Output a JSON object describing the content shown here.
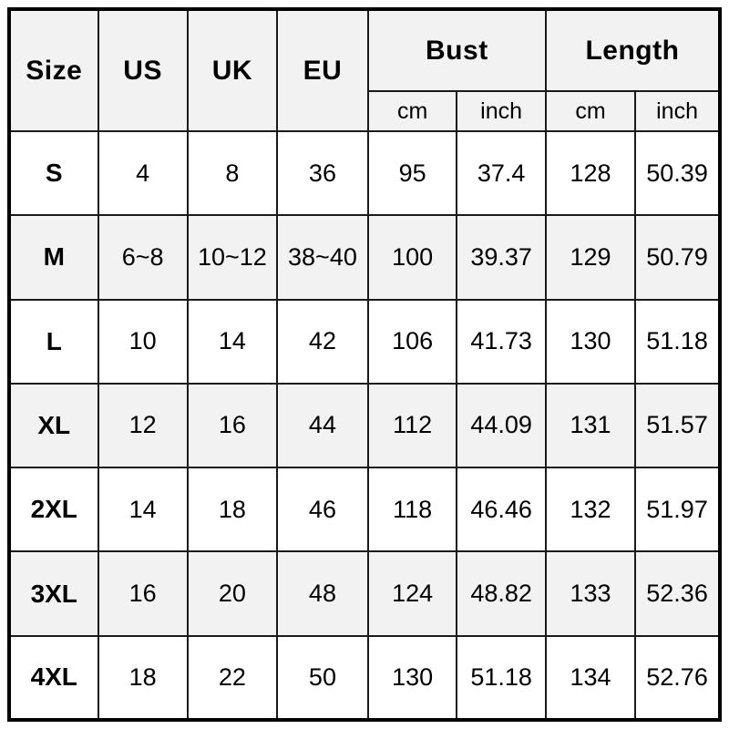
{
  "chart_data": {
    "type": "table",
    "column_groups": [
      {
        "label": "Size",
        "colspan": 1,
        "rowspan": 2
      },
      {
        "label": "US",
        "colspan": 1,
        "rowspan": 2
      },
      {
        "label": "UK",
        "colspan": 1,
        "rowspan": 2
      },
      {
        "label": "EU",
        "colspan": 1,
        "rowspan": 2
      },
      {
        "label": "Bust",
        "colspan": 2,
        "rowspan": 1
      },
      {
        "label": "Length",
        "colspan": 2,
        "rowspan": 1
      }
    ],
    "sub_headers": [
      "cm",
      "inch",
      "cm",
      "inch"
    ],
    "columns": [
      "Size",
      "US",
      "UK",
      "EU",
      "Bust cm",
      "Bust inch",
      "Length cm",
      "Length inch"
    ],
    "rows": [
      [
        "S",
        "4",
        "8",
        "36",
        "95",
        "37.4",
        "128",
        "50.39"
      ],
      [
        "M",
        "6~8",
        "10~12",
        "38~40",
        "100",
        "39.37",
        "129",
        "50.79"
      ],
      [
        "L",
        "10",
        "14",
        "42",
        "106",
        "41.73",
        "130",
        "51.18"
      ],
      [
        "XL",
        "12",
        "16",
        "44",
        "112",
        "44.09",
        "131",
        "51.57"
      ],
      [
        "2XL",
        "14",
        "18",
        "46",
        "118",
        "46.46",
        "132",
        "51.97"
      ],
      [
        "3XL",
        "16",
        "20",
        "48",
        "124",
        "48.82",
        "133",
        "52.36"
      ],
      [
        "4XL",
        "18",
        "22",
        "50",
        "130",
        "51.18",
        "134",
        "52.76"
      ]
    ]
  },
  "colors": {
    "border_outer": "#000000",
    "grid_line": "#1a1a1a",
    "row_alt_background": "#f2f2f2",
    "row_base_background": "#ffffff",
    "header_background": "#f2f2f2",
    "text": "#000000"
  }
}
